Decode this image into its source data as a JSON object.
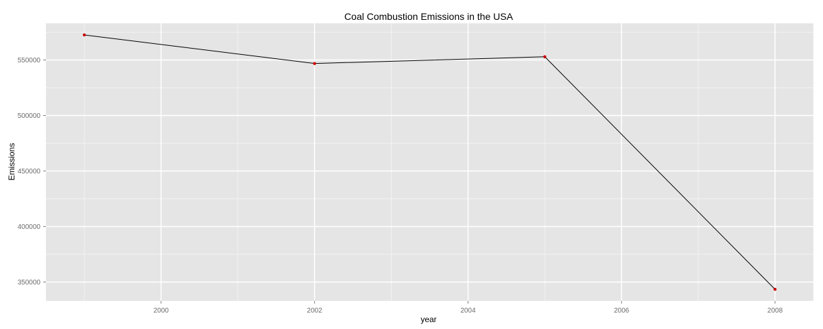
{
  "chart_data": {
    "type": "line",
    "title": "Coal Combustion Emissions in the USA",
    "xlabel": "year",
    "ylabel": "Emissions",
    "x": [
      1999,
      2002,
      2005,
      2008
    ],
    "series": [
      {
        "values": [
          572526,
          546789,
          552881,
          343432
        ]
      }
    ],
    "xlim": [
      1998.5,
      2008.5
    ],
    "ylim": [
      333000,
      583000
    ],
    "x_ticks": [
      2000,
      2002,
      2004,
      2006,
      2008
    ],
    "x_tick_labels": [
      "2000",
      "2002",
      "2004",
      "2006",
      "2008"
    ],
    "y_ticks": [
      350000,
      400000,
      450000,
      500000,
      550000
    ],
    "y_tick_labels": [
      "350000",
      "400000",
      "450000",
      "500000",
      "550000"
    ],
    "grid": true,
    "colors": {
      "panel_background": "#e5e5e5",
      "grid_major": "#ffffff",
      "grid_minor": "#f2f2f2",
      "line": "#000000",
      "point": "#cc0000"
    }
  }
}
